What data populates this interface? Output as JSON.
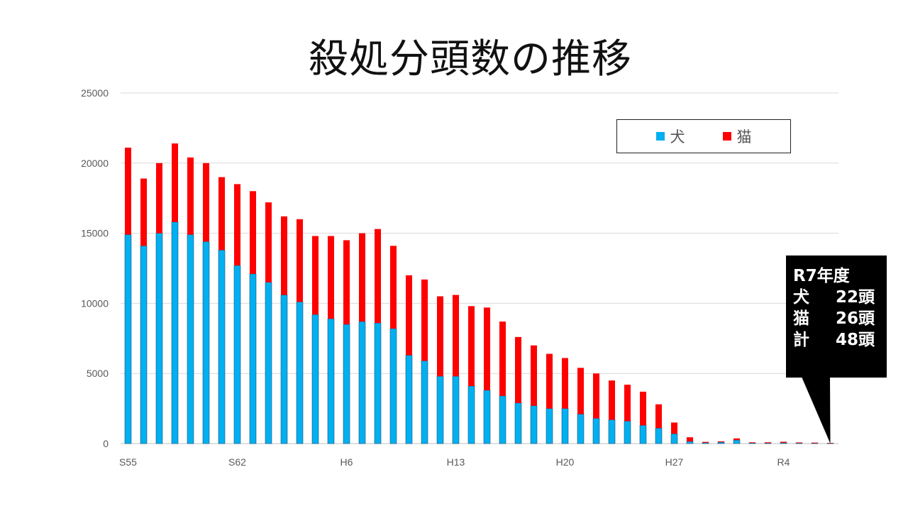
{
  "title": "殺処分頭数の推移",
  "legend": [
    {
      "label": "犬",
      "color": "#00B0F0"
    },
    {
      "label": "猫",
      "color": "#FF0000"
    }
  ],
  "callout": {
    "heading": "R7年度",
    "rows": [
      {
        "label": "犬",
        "value": "22",
        "unit": "頭"
      },
      {
        "label": "猫",
        "value": "26",
        "unit": "頭"
      },
      {
        "label": "計",
        "value": "48",
        "unit": "頭"
      }
    ]
  },
  "chart_data": {
    "type": "bar",
    "stacked": true,
    "x_tick_labels": [
      "S55",
      "S62",
      "H6",
      "H13",
      "H20",
      "H27",
      "R4"
    ],
    "x_tick_positions": [
      0,
      7,
      14,
      21,
      28,
      35,
      42
    ],
    "categories_count": 46,
    "ylim": [
      0,
      25000
    ],
    "yticks": [
      0,
      5000,
      10000,
      15000,
      20000,
      25000
    ],
    "grid": true,
    "legend_position": "top-right",
    "series": [
      {
        "name": "犬",
        "color": "#00B0F0",
        "values": [
          14900,
          14100,
          15000,
          15800,
          14900,
          14400,
          13800,
          12700,
          12100,
          11500,
          10600,
          10100,
          9200,
          8900,
          8500,
          8700,
          8600,
          8200,
          6300,
          5900,
          4800,
          4800,
          4100,
          3800,
          3400,
          2900,
          2700,
          2500,
          2500,
          2100,
          1800,
          1700,
          1600,
          1300,
          1100,
          700,
          150,
          60,
          100,
          250,
          50,
          40,
          60,
          40,
          30,
          22
        ]
      },
      {
        "name": "猫",
        "color": "#FF0000",
        "values": [
          6200,
          4800,
          5000,
          5600,
          5500,
          5600,
          5200,
          5800,
          5900,
          5700,
          5600,
          5900,
          5600,
          5900,
          6000,
          6300,
          6700,
          5900,
          5700,
          5800,
          5700,
          5800,
          5700,
          5900,
          5300,
          4700,
          4300,
          3900,
          3600,
          3300,
          3200,
          2800,
          2600,
          2400,
          1700,
          800,
          300,
          60,
          60,
          120,
          40,
          50,
          70,
          40,
          40,
          26
        ]
      }
    ]
  }
}
